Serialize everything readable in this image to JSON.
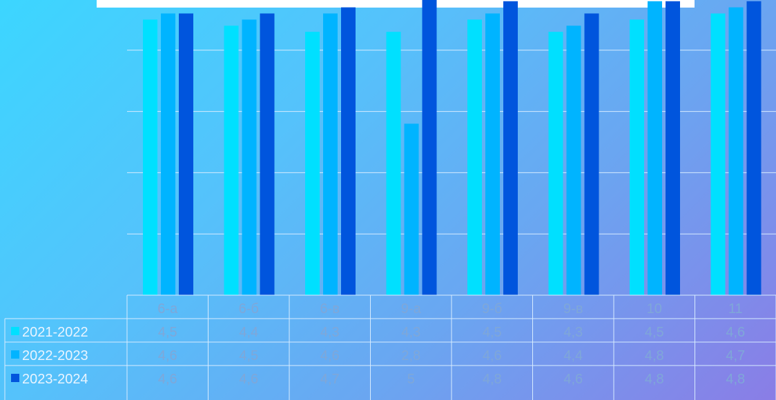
{
  "chart_data": {
    "type": "bar",
    "title": "",
    "categories": [
      "6-а",
      "6-б",
      "6-в",
      "9-а",
      "9-б",
      "9-в",
      "10",
      "11"
    ],
    "series": [
      {
        "name": "2021-2022",
        "color": "#00e0ff",
        "values": [
          4.5,
          4.4,
          4.3,
          4.3,
          4.5,
          4.3,
          4.5,
          4.6
        ],
        "labels": [
          "4,5",
          "4,4",
          "4,3",
          "4,3",
          "4,5",
          "4,3",
          "4,5",
          "4,6"
        ]
      },
      {
        "name": "2022-2023",
        "color": "#00b4ff",
        "values": [
          4.6,
          4.5,
          4.6,
          2.8,
          4.6,
          4.4,
          4.8,
          4.7
        ],
        "labels": [
          "4,6",
          "4,5",
          "4,6",
          "2,8",
          "4,6",
          "4,4",
          "4,8",
          "4,7"
        ]
      },
      {
        "name": "2023-2024",
        "color": "#0055dd",
        "values": [
          4.6,
          4.6,
          4.7,
          5,
          4.8,
          4.6,
          4.8,
          4.8
        ],
        "labels": [
          "4,6",
          "4,6",
          "4,7",
          "5",
          "4,8",
          "4,6",
          "4,8",
          "4,8"
        ]
      }
    ],
    "ylim": [
      0,
      5
    ],
    "grid": true,
    "legend": "data-table"
  }
}
